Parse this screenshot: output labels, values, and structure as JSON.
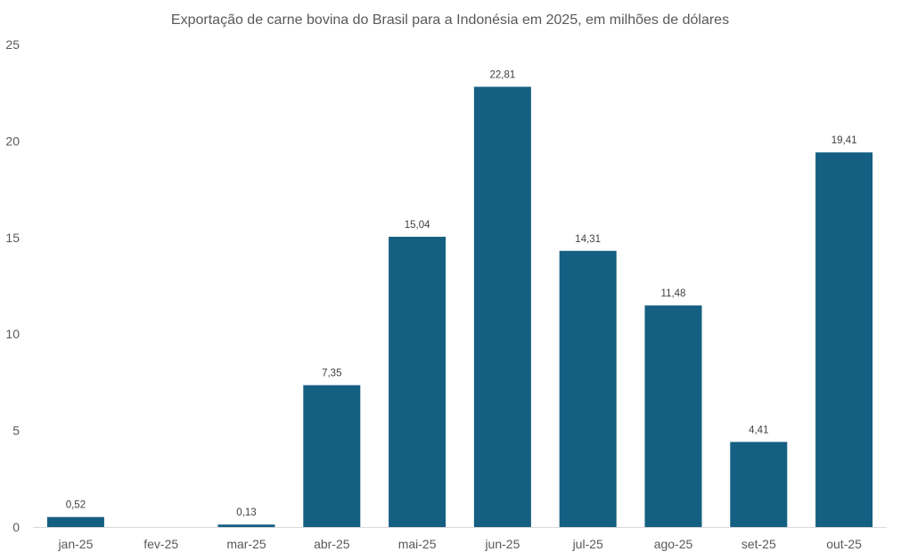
{
  "chart_data": {
    "type": "bar",
    "title": "Exportação de carne bovina do Brasil para a Indonésia em 2025, em milhões de dólares",
    "xlabel": "",
    "ylabel": "",
    "categories": [
      "jan-25",
      "fev-25",
      "mar-25",
      "abr-25",
      "mai-25",
      "jun-25",
      "jul-25",
      "ago-25",
      "set-25",
      "out-25"
    ],
    "values": [
      0.52,
      null,
      0.13,
      7.35,
      15.04,
      22.81,
      14.31,
      11.48,
      4.41,
      19.41
    ],
    "data_labels": [
      "0,52",
      "",
      "0,13",
      "7,35",
      "15,04",
      "22,81",
      "14,31",
      "11,48",
      "4,41",
      "19,41"
    ],
    "ylim": [
      0,
      25
    ],
    "yticks": [
      "0",
      "5",
      "10",
      "15",
      "20",
      "25"
    ],
    "grid": false,
    "legend": "none",
    "bar_color": "#155F82",
    "axis_color": "#D9D9D9"
  }
}
